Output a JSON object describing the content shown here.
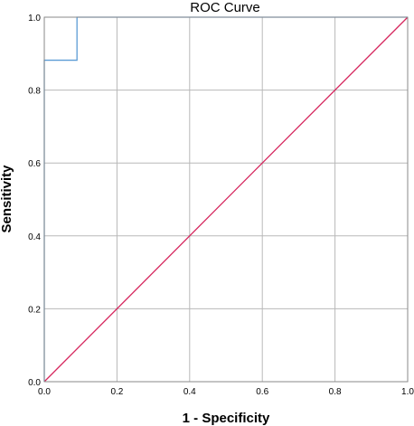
{
  "chart_data": {
    "type": "line",
    "title": "ROC Curve",
    "xlabel": "1 - Specificity",
    "ylabel": "Sensitivity",
    "xlim": [
      0,
      1
    ],
    "ylim": [
      0,
      1
    ],
    "grid": true,
    "xticks": [
      "0.0",
      "0.2",
      "0.4",
      "0.6",
      "0.8",
      "1.0"
    ],
    "yticks": [
      "0.0",
      "0.2",
      "0.4",
      "0.6",
      "0.8",
      "1.0"
    ],
    "series": [
      {
        "color": "#5b9bd5",
        "x": [
          0.0,
          0.0,
          0.09,
          0.09,
          1.0
        ],
        "y": [
          0.0,
          0.882,
          0.882,
          1.0,
          1.0
        ]
      },
      {
        "color": "#d6275e",
        "x": [
          0.0,
          1.0
        ],
        "y": [
          0.0,
          1.0
        ]
      }
    ]
  }
}
